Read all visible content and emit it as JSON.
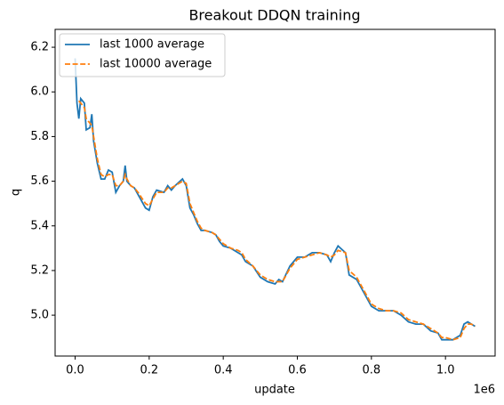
{
  "chart_data": {
    "type": "line",
    "title": "Breakout DDQN training",
    "x_label": "update",
    "y_label": "q",
    "x_offset_label": "1e6",
    "x": [
      0,
      5000,
      10000,
      15000,
      25000,
      30000,
      40000,
      45000,
      50000,
      60000,
      70000,
      80000,
      90000,
      100000,
      110000,
      120000,
      130000,
      135000,
      140000,
      150000,
      160000,
      170000,
      190000,
      200000,
      210000,
      220000,
      240000,
      250000,
      260000,
      270000,
      290000,
      300000,
      310000,
      320000,
      330000,
      340000,
      350000,
      370000,
      380000,
      390000,
      400000,
      420000,
      440000,
      450000,
      460000,
      480000,
      500000,
      520000,
      540000,
      550000,
      560000,
      580000,
      600000,
      620000,
      640000,
      660000,
      680000,
      690000,
      700000,
      710000,
      730000,
      740000,
      760000,
      780000,
      800000,
      820000,
      840000,
      860000,
      880000,
      900000,
      920000,
      940000,
      960000,
      980000,
      990000,
      1000000,
      1020000,
      1040000,
      1050000,
      1060000,
      1070000,
      1080000
    ],
    "series": [
      {
        "name": "last 1000 average",
        "color": "#1f77b4",
        "dash": false,
        "values": [
          6.15,
          5.95,
          5.88,
          5.97,
          5.95,
          5.83,
          5.84,
          5.9,
          5.78,
          5.68,
          5.61,
          5.61,
          5.65,
          5.64,
          5.55,
          5.58,
          5.6,
          5.67,
          5.6,
          5.58,
          5.57,
          5.54,
          5.48,
          5.47,
          5.53,
          5.56,
          5.55,
          5.58,
          5.56,
          5.58,
          5.61,
          5.58,
          5.48,
          5.45,
          5.41,
          5.38,
          5.38,
          5.37,
          5.36,
          5.33,
          5.31,
          5.3,
          5.28,
          5.27,
          5.24,
          5.22,
          5.17,
          5.15,
          5.14,
          5.16,
          5.15,
          5.22,
          5.26,
          5.26,
          5.28,
          5.28,
          5.27,
          5.24,
          5.28,
          5.31,
          5.28,
          5.18,
          5.16,
          5.1,
          5.04,
          5.02,
          5.02,
          5.02,
          5.0,
          4.97,
          4.96,
          4.96,
          4.93,
          4.92,
          4.89,
          4.89,
          4.89,
          4.91,
          4.96,
          4.97,
          4.96,
          4.95
        ]
      },
      {
        "name": "last 10000 average",
        "color": "#ff7f0e",
        "dash": true,
        "values": [
          null,
          null,
          5.96,
          5.95,
          5.93,
          5.88,
          5.86,
          5.85,
          5.8,
          5.7,
          5.63,
          5.62,
          5.63,
          5.63,
          5.58,
          5.58,
          5.6,
          5.63,
          5.61,
          5.58,
          5.57,
          5.55,
          5.5,
          5.49,
          5.52,
          5.55,
          5.55,
          5.57,
          5.57,
          5.58,
          5.6,
          5.59,
          5.5,
          5.46,
          5.42,
          5.39,
          5.38,
          5.37,
          5.36,
          5.34,
          5.32,
          5.3,
          5.29,
          5.28,
          5.25,
          5.22,
          5.18,
          5.16,
          5.15,
          5.15,
          5.15,
          5.21,
          5.25,
          5.26,
          5.27,
          5.28,
          5.27,
          5.26,
          5.27,
          5.29,
          5.28,
          5.2,
          5.17,
          5.11,
          5.05,
          5.03,
          5.02,
          5.02,
          5.01,
          4.98,
          4.97,
          4.96,
          4.94,
          4.92,
          4.9,
          4.9,
          4.89,
          4.9,
          4.94,
          4.96,
          4.96,
          4.95
        ]
      }
    ],
    "xlim": [
      -54000,
      1134000
    ],
    "ylim": [
      4.817,
      6.28
    ],
    "xticks": [
      {
        "value": 0,
        "label": "0.0"
      },
      {
        "value": 200000,
        "label": "0.2"
      },
      {
        "value": 400000,
        "label": "0.4"
      },
      {
        "value": 600000,
        "label": "0.6"
      },
      {
        "value": 800000,
        "label": "0.8"
      },
      {
        "value": 1000000,
        "label": "1.0"
      }
    ],
    "yticks": [
      {
        "value": 5,
        "label": "5.0"
      },
      5.2,
      5.4,
      5.6,
      5.8,
      {
        "value": 6,
        "label": "6.0"
      },
      6.2
    ],
    "grid": false,
    "legend": "upper left"
  }
}
